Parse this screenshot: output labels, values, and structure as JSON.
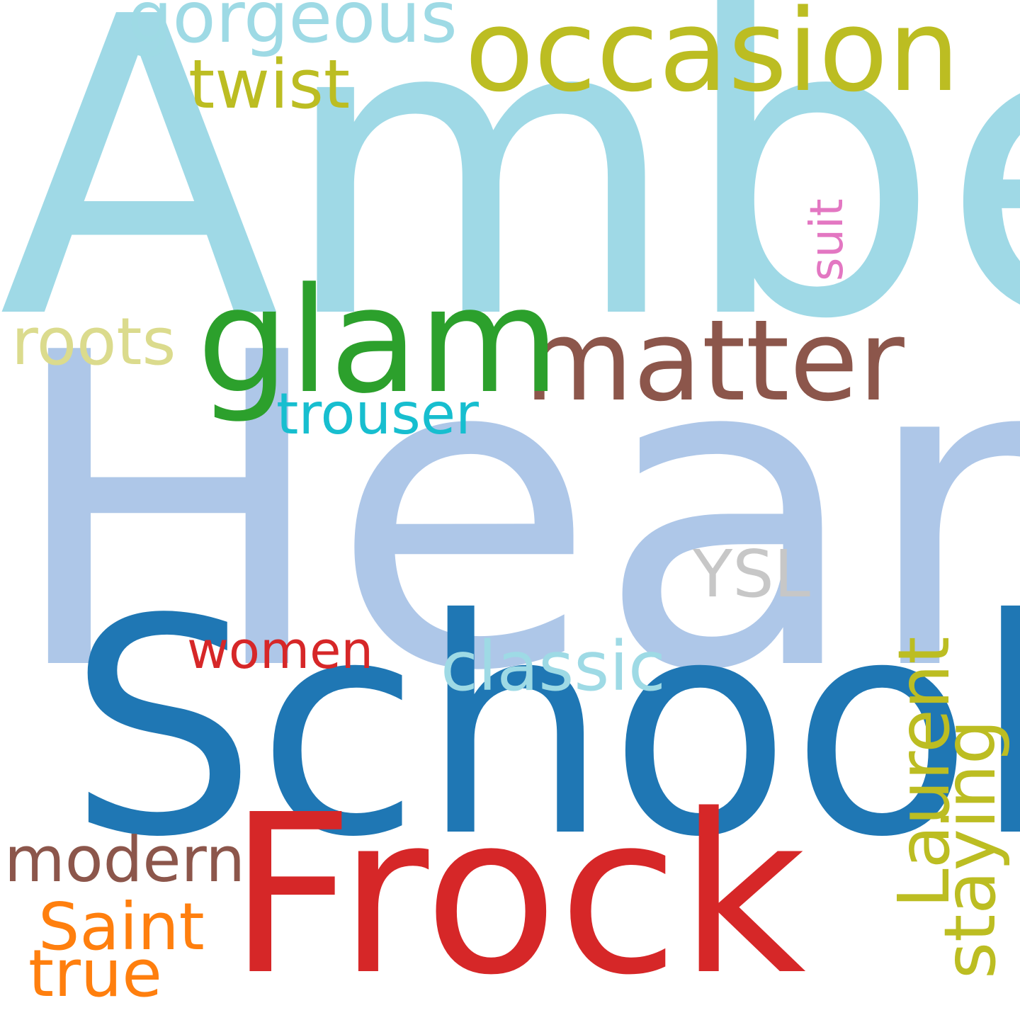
{
  "words": {
    "amber": {
      "text": "Amber",
      "color": "#9fd9e6"
    },
    "heard": {
      "text": "Heard",
      "color": "#aec7e8"
    },
    "school": {
      "text": "School",
      "color": "#1f77b4"
    },
    "frock": {
      "text": "Frock",
      "color": "#d62728"
    },
    "occasion": {
      "text": "occasion",
      "color": "#bcbd22"
    },
    "matter": {
      "text": "matter",
      "color": "#8c564b"
    },
    "glam": {
      "text": "glam",
      "color": "#2ca02c"
    },
    "gorgeous": {
      "text": "gorgeous",
      "color": "#9edae5"
    },
    "twist": {
      "text": "twist",
      "color": "#bcbd22"
    },
    "roots": {
      "text": "roots",
      "color": "#dbdb8d"
    },
    "trouser": {
      "text": "trouser",
      "color": "#17becf"
    },
    "suit": {
      "text": "suit",
      "color": "#e377c2"
    },
    "ysl": {
      "text": "YSL",
      "color": "#c7c7c7"
    },
    "women": {
      "text": "women",
      "color": "#d62728"
    },
    "classic": {
      "text": "classic",
      "color": "#9edae5"
    },
    "laurent": {
      "text": "Laurent",
      "color": "#bcbd22"
    },
    "staying": {
      "text": "staying",
      "color": "#bcbd22"
    },
    "modern": {
      "text": "modern",
      "color": "#8c564b"
    },
    "saint": {
      "text": "Saint",
      "color": "#ff7f0e"
    },
    "true": {
      "text": "true",
      "color": "#ff7f0e"
    }
  }
}
